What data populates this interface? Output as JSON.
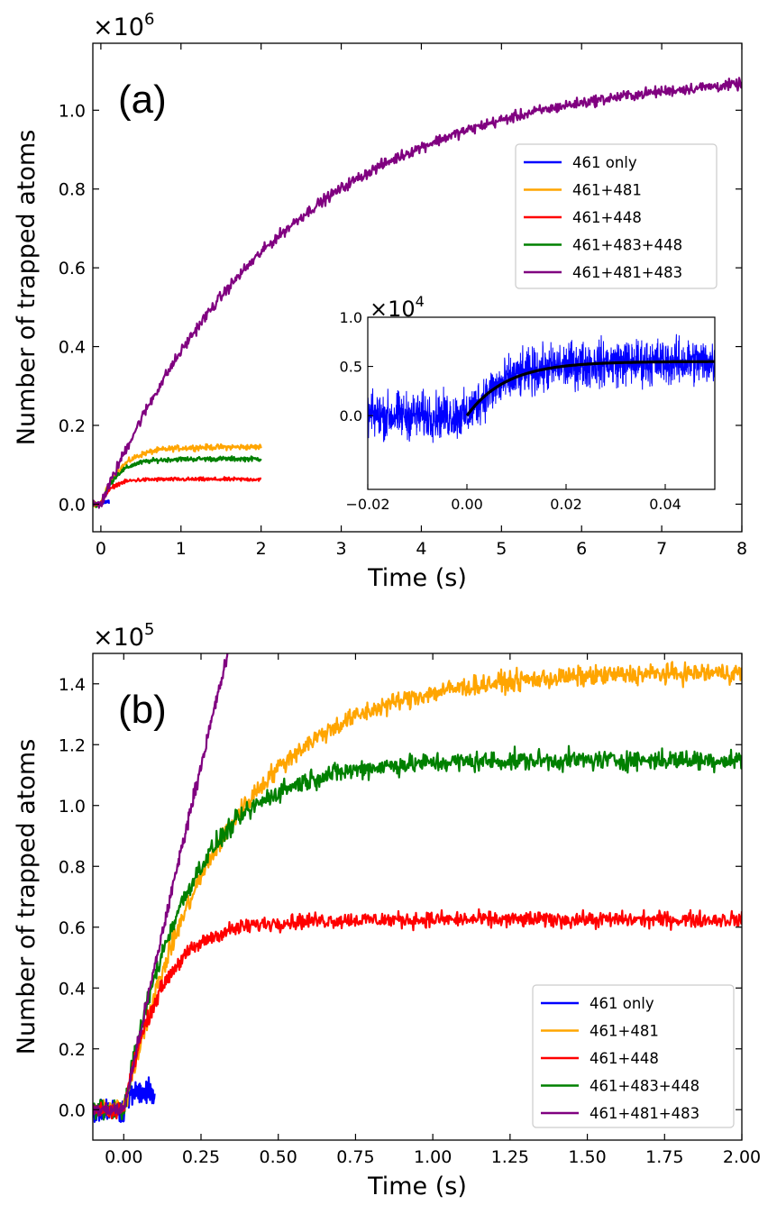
{
  "chart_data": [
    {
      "type": "line",
      "panel_label": "(a)",
      "xlabel": "Time (s)",
      "ylabel": "Number of trapped atoms",
      "y_scale_label": "×10",
      "y_scale_exp": "6",
      "xlim": [
        -0.1,
        8
      ],
      "ylim": [
        -0.07,
        1.17
      ],
      "xticks": [
        0,
        1,
        2,
        3,
        4,
        5,
        6,
        7,
        8
      ],
      "xtick_labels": [
        "0",
        "1",
        "2",
        "3",
        "4",
        "5",
        "6",
        "7",
        "8"
      ],
      "yticks": [
        0.0,
        0.2,
        0.4,
        0.6,
        0.8,
        1.0
      ],
      "ytick_labels": [
        "0.0",
        "0.2",
        "0.4",
        "0.6",
        "0.8",
        "1.0"
      ],
      "legend_position": "right",
      "series": [
        {
          "name": "461 only",
          "color": "#0000ff",
          "tau": 0.01,
          "amp": 0.0055,
          "t_end": 0.1,
          "noise": 0.004
        },
        {
          "name": "461+481",
          "color": "#ffa500",
          "tau": 0.25,
          "amp": 0.145,
          "t_end": 2.0,
          "noise": 0.006
        },
        {
          "name": "461+448",
          "color": "#ff0000",
          "tau": 0.13,
          "amp": 0.063,
          "t_end": 2.0,
          "noise": 0.004
        },
        {
          "name": "461+483+448",
          "color": "#008000",
          "tau": 0.2,
          "amp": 0.115,
          "t_end": 2.0,
          "noise": 0.005
        },
        {
          "name": "461+481+483",
          "color": "#800080",
          "tau": 2.3,
          "amp": 1.1,
          "t_end": 8.0,
          "noise": 0.012
        }
      ],
      "inset": {
        "y_scale_label": "×10",
        "y_scale_exp": "4",
        "xlim": [
          -0.02,
          0.05
        ],
        "ylim": [
          -0.75,
          1.0
        ],
        "xticks": [
          -0.02,
          0.0,
          0.02,
          0.04
        ],
        "xtick_labels": [
          "−0.02",
          "0.00",
          "0.02",
          "0.04"
        ],
        "yticks": [
          0.0,
          0.5,
          1.0
        ],
        "ytick_labels": [
          "0.0",
          "0.5",
          "1.0"
        ],
        "data_color": "#0000ff",
        "fit_color": "#000000",
        "fit_tau": 0.008,
        "fit_amp": 0.55
      }
    },
    {
      "type": "line",
      "panel_label": "(b)",
      "xlabel": "Time (s)",
      "ylabel": "Number of trapped atoms",
      "y_scale_label": "×10",
      "y_scale_exp": "5",
      "xlim": [
        -0.1,
        2.0
      ],
      "ylim": [
        -0.1,
        1.5
      ],
      "xticks": [
        0.0,
        0.25,
        0.5,
        0.75,
        1.0,
        1.25,
        1.5,
        1.75,
        2.0
      ],
      "xtick_labels": [
        "0.00",
        "0.25",
        "0.50",
        "0.75",
        "1.00",
        "1.25",
        "1.50",
        "1.75",
        "2.00"
      ],
      "yticks": [
        0.0,
        0.2,
        0.4,
        0.6,
        0.8,
        1.0,
        1.2,
        1.4
      ],
      "ytick_labels": [
        "0.0",
        "0.2",
        "0.4",
        "0.6",
        "0.8",
        "1.0",
        "1.2",
        "1.4"
      ],
      "legend_position": "lower right",
      "series": [
        {
          "name": "461 only",
          "color": "#0000ff",
          "tau": 0.01,
          "amp": 0.055,
          "t_end": 0.1,
          "noise": 0.035
        },
        {
          "name": "461+481",
          "color": "#ffa500",
          "tau": 0.33,
          "amp": 1.44,
          "t_end": 2.0,
          "noise": 0.028
        },
        {
          "name": "461+448",
          "color": "#ff0000",
          "tau": 0.12,
          "amp": 0.625,
          "t_end": 2.0,
          "noise": 0.022
        },
        {
          "name": "461+483+448",
          "color": "#008000",
          "tau": 0.21,
          "amp": 1.15,
          "t_end": 2.0,
          "noise": 0.028
        },
        {
          "name": "461+481+483",
          "color": "#800080",
          "tau": 2.3,
          "amp": 11.0,
          "t_end": 0.36,
          "noise": 0.02
        }
      ]
    }
  ]
}
